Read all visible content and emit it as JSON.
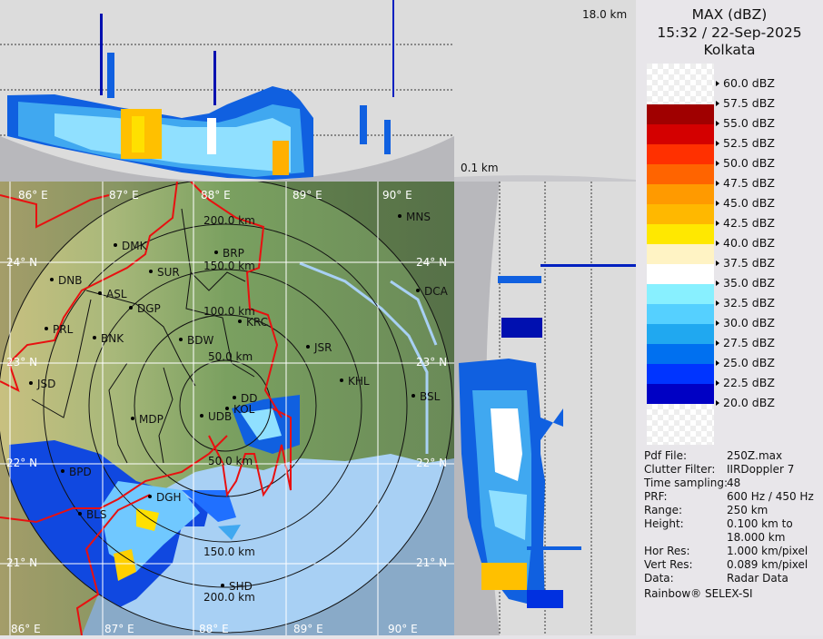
{
  "header": {
    "product": "MAX (dBZ)",
    "datetime": "15:32 / 22-Sep-2025",
    "station": "Kolkata"
  },
  "cross_section": {
    "top_height_label": "18.0 km",
    "bottom_height_label": "0.1 km"
  },
  "legend": {
    "labels": [
      "60.0 dBZ",
      "57.5 dBZ",
      "55.0 dBZ",
      "52.5 dBZ",
      "50.0 dBZ",
      "47.5 dBZ",
      "45.0 dBZ",
      "42.5 dBZ",
      "40.0 dBZ",
      "37.5 dBZ",
      "35.0 dBZ",
      "32.5 dBZ",
      "30.0 dBZ",
      "27.5 dBZ",
      "25.0 dBZ",
      "22.5 dBZ",
      "20.0 dBZ"
    ],
    "colors": [
      "#a00000",
      "#d40000",
      "#ff3000",
      "#ff6400",
      "#ff9a00",
      "#ffb800",
      "#ffe800",
      "#fff3c4",
      "#ffffff",
      "#88f0ff",
      "#55d0ff",
      "#20a8f0",
      "#0070f0",
      "#0034ff",
      "#0000c4",
      "#000090"
    ]
  },
  "metadata": [
    {
      "key": "Pdf File:",
      "value": "250Z.max"
    },
    {
      "key": "Clutter Filter:",
      "value": "IIRDoppler 7"
    },
    {
      "key": "Time sampling:",
      "value": "48"
    },
    {
      "key": "PRF:",
      "value": "600 Hz / 450 Hz"
    },
    {
      "key": "Range:",
      "value": "250 km"
    },
    {
      "key": "Height:",
      "value": "0.100 km to"
    },
    {
      "key": "",
      "value": "18.000 km"
    },
    {
      "key": "Hor Res:",
      "value": "1.000 km/pixel"
    },
    {
      "key": "Vert Res:",
      "value": "0.089 km/pixel"
    },
    {
      "key": "Data:",
      "value": "Radar Data"
    }
  ],
  "footer": "Rainbow® SELEX-SI",
  "map": {
    "longitudes": [
      "86° E",
      "87° E",
      "88° E",
      "89° E",
      "90° E"
    ],
    "latitudes": [
      "24° N",
      "23° N",
      "22° N",
      "21° N"
    ],
    "ranges_top": [
      "200.0 km",
      "150.0 km",
      "100.0 km",
      "50.0 km"
    ],
    "ranges_bottom": [
      "50.0 km",
      "150.0 km",
      "200.0 km"
    ],
    "cities": [
      "MNS",
      "DMK",
      "BRP",
      "DNB",
      "SUR",
      "ASL",
      "DGP",
      "KRC",
      "JSR",
      "BNK",
      "BDW",
      "PRL",
      "DCA",
      "KHL",
      "BSL",
      "JSD",
      "DD",
      "KOL",
      "MDP",
      "UDB",
      "BPD",
      "DGH",
      "BLS",
      "SHD"
    ]
  }
}
